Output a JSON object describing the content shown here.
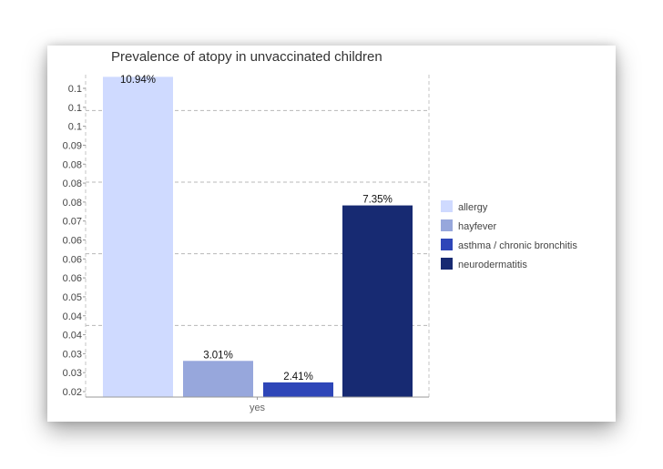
{
  "chart_data": {
    "type": "bar",
    "title": "Prevalence of atopy in unvaccinated children",
    "xlabel": "",
    "ylabel": "",
    "categories": [
      "yes"
    ],
    "ylim": [
      0.02,
      0.11
    ],
    "y_tick_labels": [
      "0.1",
      "0.1",
      "0.1",
      "0.09",
      "0.08",
      "0.08",
      "0.08",
      "0.07",
      "0.06",
      "0.06",
      "0.06",
      "0.05",
      "0.04",
      "0.04",
      "0.03",
      "0.03",
      "0.02"
    ],
    "grid": true,
    "legend_position": "right",
    "series": [
      {
        "name": "allergy",
        "values": [
          0.1094
        ],
        "label": "10.94%",
        "color": "#cfdaff"
      },
      {
        "name": "hayfever",
        "values": [
          0.0301
        ],
        "label": "3.01%",
        "color": "#97a7dc"
      },
      {
        "name": "asthma / chronic bronchitis",
        "values": [
          0.0241
        ],
        "label": "2.41%",
        "color": "#2e46b8"
      },
      {
        "name": "neurodermatitis",
        "values": [
          0.0735
        ],
        "label": "7.35%",
        "color": "#172a72"
      }
    ]
  }
}
